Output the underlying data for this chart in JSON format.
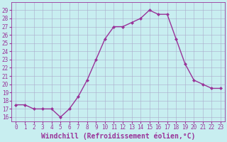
{
  "x": [
    0,
    1,
    2,
    3,
    4,
    5,
    6,
    7,
    8,
    9,
    10,
    11,
    12,
    13,
    14,
    15,
    16,
    17,
    18,
    19,
    20,
    21,
    22,
    23
  ],
  "y": [
    17.5,
    17.5,
    17.0,
    17.0,
    17.0,
    16.0,
    17.0,
    18.5,
    20.5,
    23.0,
    25.5,
    27.0,
    27.0,
    27.5,
    28.0,
    29.0,
    28.5,
    28.5,
    25.5,
    22.5,
    20.5,
    20.0,
    19.5,
    19.5
  ],
  "line_color": "#993399",
  "marker": "D",
  "marker_size": 2,
  "linewidth": 1.0,
  "xlabel": "Windchill (Refroidissement éolien,°C)",
  "xlabel_fontsize": 7,
  "ylim": [
    15.5,
    30.0
  ],
  "xlim": [
    -0.5,
    23.5
  ],
  "yticks": [
    16,
    17,
    18,
    19,
    20,
    21,
    22,
    23,
    24,
    25,
    26,
    27,
    28,
    29
  ],
  "xticks": [
    0,
    1,
    2,
    3,
    4,
    5,
    6,
    7,
    8,
    9,
    10,
    11,
    12,
    13,
    14,
    15,
    16,
    17,
    18,
    19,
    20,
    21,
    22,
    23
  ],
  "bg_color": "#c8eef0",
  "grid_color": "#aaaacc",
  "tick_fontsize": 5.5
}
